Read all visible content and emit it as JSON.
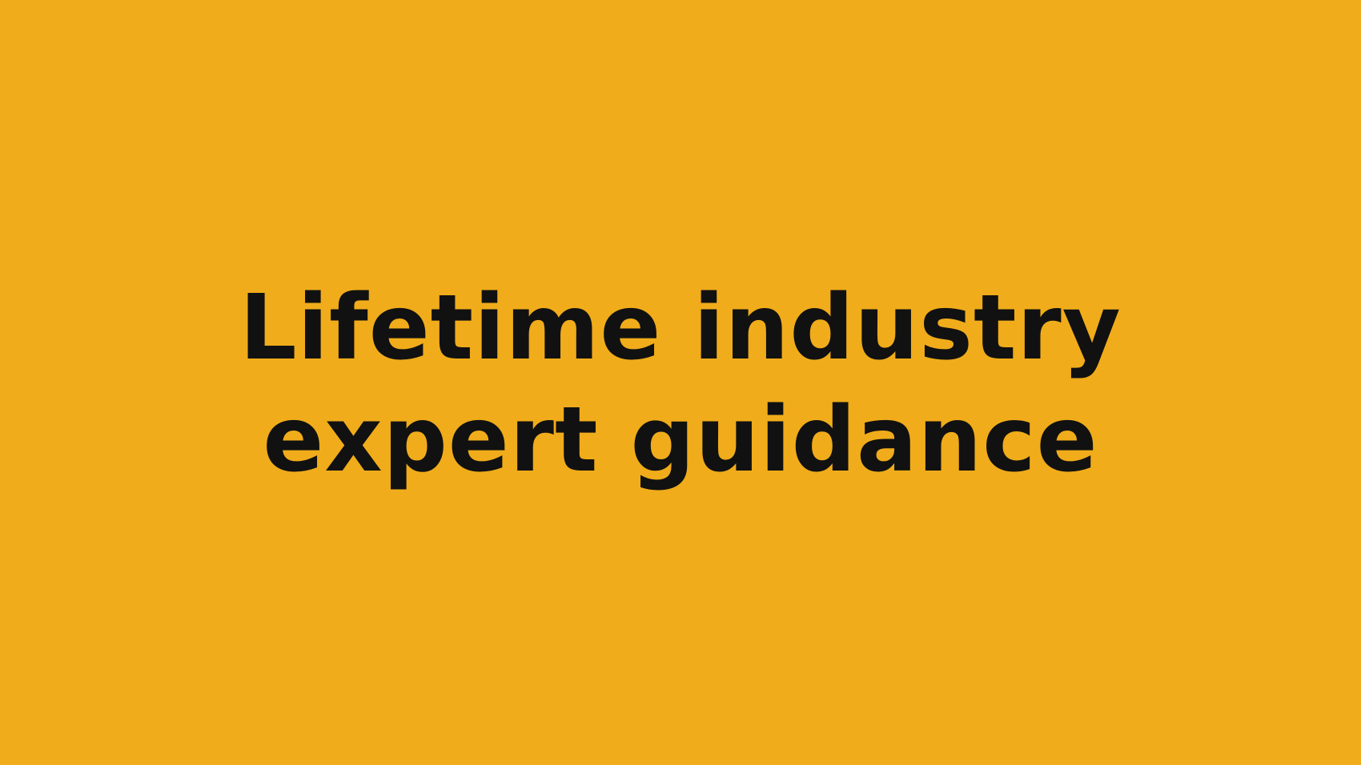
{
  "background_color": "#F0AC1A",
  "text_color": "#111111",
  "headline": {
    "line1": "Lifetime industry",
    "line2": "expert guidance"
  }
}
